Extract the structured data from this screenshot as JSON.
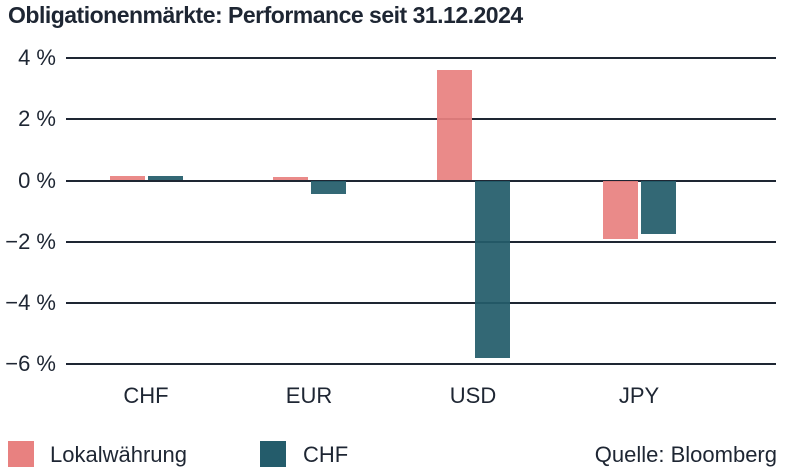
{
  "title": "Obligationenmärkte: Performance seit 31.12.2024",
  "source": "Quelle: Bloomberg",
  "colors": {
    "local_currency": "#E88180",
    "chf_hedged": "#245C6B",
    "text": "#1E2633",
    "gridline": "#1E2633",
    "background": "#ffffff"
  },
  "legend": {
    "items": [
      {
        "label": "Lokalwährung",
        "color": "#E88180"
      },
      {
        "label": "CHF",
        "color": "#245C6B"
      }
    ]
  },
  "chart_data": {
    "type": "bar",
    "title": "Obligationenmärkte: Performance seit 31.12.2024",
    "categories": [
      "CHF",
      "EUR",
      "USD",
      "JPY"
    ],
    "series": [
      {
        "name": "Lokalwährung",
        "color": "#E88180",
        "values": [
          0.15,
          0.1,
          3.6,
          -1.9
        ]
      },
      {
        "name": "CHF",
        "color": "#245C6B",
        "values": [
          0.15,
          -0.45,
          -5.8,
          -1.75
        ]
      }
    ],
    "xlabel": "",
    "ylabel": "",
    "ytick_labels": [
      "4 %",
      "2 %",
      "0 %",
      "−2 %",
      "−4 %",
      "−6 %"
    ],
    "ytick_values": [
      4,
      2,
      0,
      -2,
      -4,
      -6
    ],
    "ylim": [
      -6.6,
      4.3
    ],
    "grid": true,
    "legend_position": "bottom",
    "source": "Quelle: Bloomberg"
  }
}
